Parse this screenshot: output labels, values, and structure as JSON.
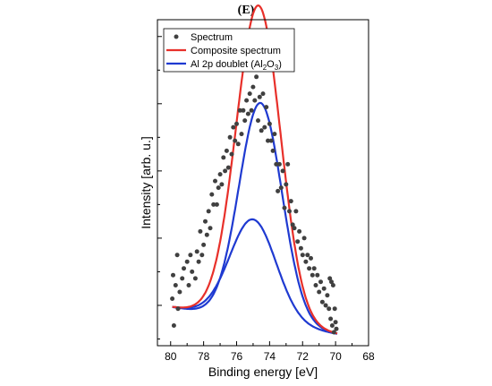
{
  "panel_label": "(E)",
  "chart_data": {
    "type": "scatter",
    "xlabel": "Binding energy [eV]",
    "ylabel": "Intensity [arb. u.]",
    "xlim": [
      80.8,
      68
    ],
    "ylim": [
      0.8,
      10.5
    ],
    "x_ticks": [
      80,
      78,
      76,
      74,
      72,
      70,
      68
    ],
    "y_tick_labels_shown": false,
    "legend_position": "top-left",
    "series": [
      {
        "name": "Spectrum",
        "kind": "points",
        "color": "#404040",
        "points": [
          [
            79.9,
            2.2
          ],
          [
            79.85,
            2.9
          ],
          [
            79.8,
            1.4
          ],
          [
            79.7,
            2.6
          ],
          [
            79.6,
            3.5
          ],
          [
            79.55,
            1.9
          ],
          [
            79.45,
            2.4
          ],
          [
            79.3,
            2.8
          ],
          [
            79.2,
            3.1
          ],
          [
            79.0,
            3.3
          ],
          [
            78.9,
            2.6
          ],
          [
            78.8,
            3.5
          ],
          [
            78.7,
            3.0
          ],
          [
            78.5,
            2.8
          ],
          [
            78.4,
            3.6
          ],
          [
            78.3,
            3.3
          ],
          [
            78.2,
            4.2
          ],
          [
            78.1,
            3.5
          ],
          [
            78.0,
            3.8
          ],
          [
            77.9,
            4.5
          ],
          [
            77.8,
            4.1
          ],
          [
            77.7,
            4.8
          ],
          [
            77.6,
            4.3
          ],
          [
            77.5,
            5.3
          ],
          [
            77.4,
            5.0
          ],
          [
            77.3,
            5.7
          ],
          [
            77.2,
            5.0
          ],
          [
            77.1,
            5.5
          ],
          [
            77.0,
            5.9
          ],
          [
            76.9,
            5.6
          ],
          [
            76.8,
            6.4
          ],
          [
            76.7,
            6.0
          ],
          [
            76.6,
            6.6
          ],
          [
            76.5,
            6.1
          ],
          [
            76.4,
            7.0
          ],
          [
            76.3,
            6.5
          ],
          [
            76.2,
            7.3
          ],
          [
            76.1,
            6.9
          ],
          [
            76.0,
            7.4
          ],
          [
            75.9,
            6.8
          ],
          [
            75.8,
            7.8
          ],
          [
            75.7,
            7.1
          ],
          [
            75.6,
            7.8
          ],
          [
            75.5,
            7.5
          ],
          [
            75.4,
            8.1
          ],
          [
            75.3,
            7.7
          ],
          [
            75.2,
            8.3
          ],
          [
            75.1,
            7.8
          ],
          [
            75.0,
            8.5
          ],
          [
            74.9,
            8.1
          ],
          [
            74.8,
            8.8
          ],
          [
            74.7,
            7.5
          ],
          [
            74.6,
            8.2
          ],
          [
            74.5,
            7.2
          ],
          [
            74.4,
            8.3
          ],
          [
            74.3,
            7.3
          ],
          [
            74.2,
            7.9
          ],
          [
            74.1,
            6.9
          ],
          [
            74.0,
            7.4
          ],
          [
            73.9,
            6.9
          ],
          [
            73.8,
            6.6
          ],
          [
            73.7,
            7.1
          ],
          [
            73.6,
            6.2
          ],
          [
            73.5,
            5.4
          ],
          [
            73.4,
            6.2
          ],
          [
            73.3,
            5.5
          ],
          [
            73.2,
            6.0
          ],
          [
            73.1,
            4.9
          ],
          [
            73.0,
            5.6
          ],
          [
            72.9,
            6.2
          ],
          [
            72.8,
            4.8
          ],
          [
            72.7,
            5.1
          ],
          [
            72.6,
            4.4
          ],
          [
            72.5,
            4.3
          ],
          [
            72.4,
            4.8
          ],
          [
            72.3,
            3.9
          ],
          [
            72.2,
            4.2
          ],
          [
            72.1,
            3.7
          ],
          [
            72.0,
            3.5
          ],
          [
            71.9,
            4.0
          ],
          [
            71.8,
            3.3
          ],
          [
            71.7,
            3.5
          ],
          [
            71.6,
            3.1
          ],
          [
            71.5,
            3.4
          ],
          [
            71.4,
            2.9
          ],
          [
            71.3,
            3.1
          ],
          [
            71.2,
            2.6
          ],
          [
            71.1,
            2.9
          ],
          [
            71.0,
            2.4
          ],
          [
            70.9,
            2.7
          ],
          [
            70.8,
            2.1
          ],
          [
            70.7,
            2.5
          ],
          [
            70.6,
            2.0
          ],
          [
            70.5,
            2.3
          ],
          [
            70.4,
            1.9
          ],
          [
            70.35,
            2.8
          ],
          [
            70.3,
            1.6
          ],
          [
            70.25,
            2.7
          ],
          [
            70.2,
            1.4
          ],
          [
            70.15,
            2.6
          ],
          [
            70.1,
            1.2
          ],
          [
            70.05,
            1.9
          ],
          [
            70.0,
            1.5
          ],
          [
            69.95,
            1.3
          ]
        ]
      },
      {
        "name": "Composite spectrum",
        "kind": "curve",
        "color": "#e8302a",
        "peaks": [
          {
            "center": 74.55,
            "amplitude": 6.5,
            "width": 1.3
          },
          {
            "center": 75.0,
            "amplitude": 3.0,
            "width": 1.4
          }
        ],
        "baseline": [
          [
            79.9,
            1.95
          ],
          [
            69.9,
            1.15
          ]
        ]
      },
      {
        "name": "Al 2p doublet (Al2O3)",
        "legend_label": {
          "prefix": "Al 2p doublet (Al",
          "sub1": "2",
          "mid": "O",
          "sub2": "3",
          "suffix": ")"
        },
        "kind": "curves",
        "color": "#1f3ad1",
        "components": [
          {
            "center": 74.55,
            "amplitude": 6.5,
            "width": 1.3
          },
          {
            "center": 75.0,
            "amplitude": 3.0,
            "width": 1.4
          }
        ],
        "baseline": [
          [
            79.9,
            1.95
          ],
          [
            69.9,
            1.15
          ]
        ]
      }
    ]
  }
}
